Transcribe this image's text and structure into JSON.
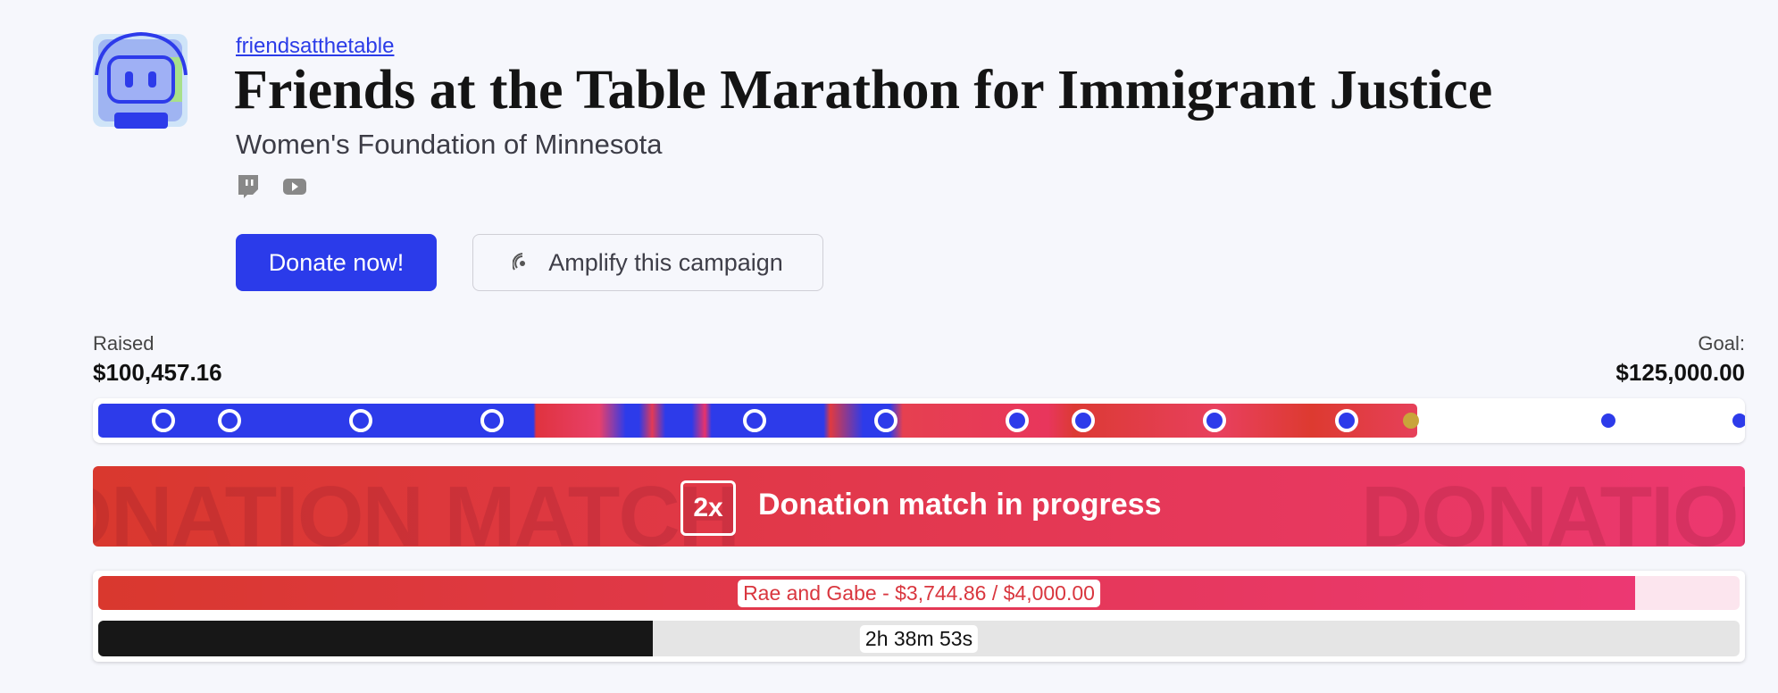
{
  "header": {
    "link": "friendsatthetable",
    "title": "Friends at the Table Marathon for Immigrant Justice",
    "subtitle": "Women's Foundation of Minnesota"
  },
  "buttons": {
    "donate": "Donate now!",
    "amplify": "Amplify this campaign"
  },
  "progress": {
    "raised_label": "Raised",
    "raised": {
      "value": 100457.16,
      "label": "$100,457.16"
    },
    "goal_label": "Goal:",
    "goal": {
      "value": 125000,
      "label": "$125,000.00"
    }
  },
  "banner": {
    "multiplier": "2x",
    "text": "Donation match in progress",
    "watermark": "DONATION MATCH"
  },
  "match": {
    "label": "Rae and Gabe - $3,744.86 / $4,000.00",
    "raised": 3744.86,
    "goal": 4000,
    "timer": "2h 38m 53s"
  }
}
